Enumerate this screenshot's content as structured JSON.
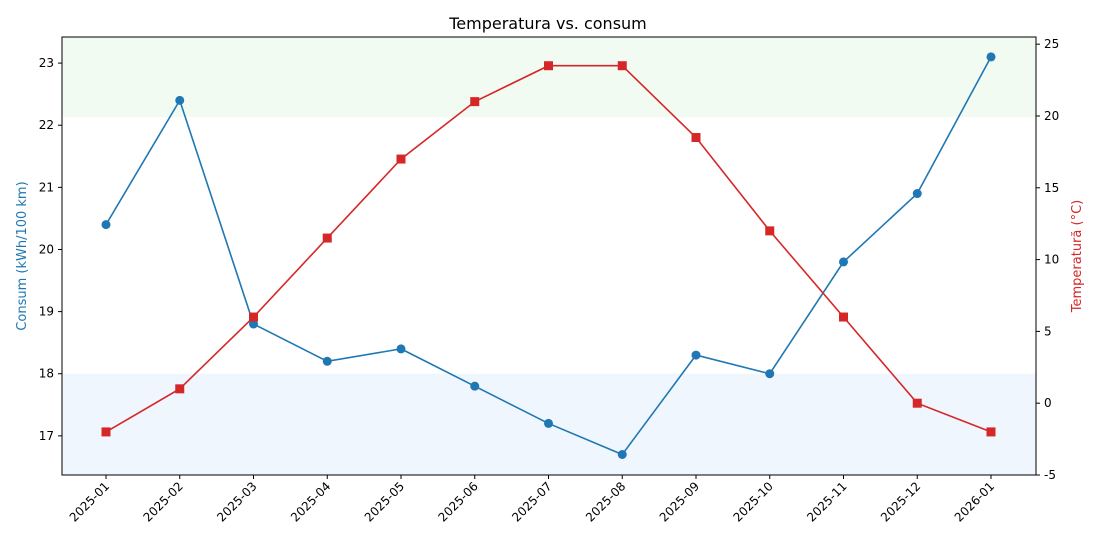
{
  "chart_data": {
    "type": "line",
    "title": "Temperatura vs. consum",
    "xlabel": "",
    "categories": [
      "2025-01",
      "2025-02",
      "2025-03",
      "2025-04",
      "2025-05",
      "2025-06",
      "2025-07",
      "2025-08",
      "2025-09",
      "2025-10",
      "2025-11",
      "2025-12",
      "2026-01"
    ],
    "y_left": {
      "label": "Consum (kWh/100 km)",
      "ylim": [
        16.37,
        23.42
      ],
      "ticks": [
        17,
        18,
        19,
        20,
        21,
        22,
        23
      ],
      "color": "#1f77b4"
    },
    "y_right": {
      "label": "Temperatură (°C)",
      "ylim": [
        -5,
        25.5
      ],
      "ticks": [
        -5,
        0,
        5,
        10,
        15,
        20,
        25
      ],
      "color": "#d62728"
    },
    "bands": [
      {
        "axis": "left",
        "from": 22.13,
        "to": 23.42,
        "color": "#f2fbf2"
      },
      {
        "axis": "left",
        "from": 16.37,
        "to": 18.0,
        "color": "#f0f6fd"
      }
    ],
    "series": [
      {
        "axis": "left",
        "marker": "circle",
        "color": "#1f77b4",
        "values": [
          20.4,
          22.4,
          18.8,
          18.2,
          18.4,
          17.8,
          17.2,
          16.7,
          18.3,
          18.0,
          19.8,
          20.9,
          23.1
        ]
      },
      {
        "axis": "right",
        "marker": "square",
        "color": "#d62728",
        "values": [
          -2.0,
          1.0,
          6.0,
          11.5,
          17.0,
          21.0,
          23.5,
          23.5,
          18.5,
          12.0,
          6.0,
          0.0,
          -2.0
        ]
      }
    ]
  }
}
